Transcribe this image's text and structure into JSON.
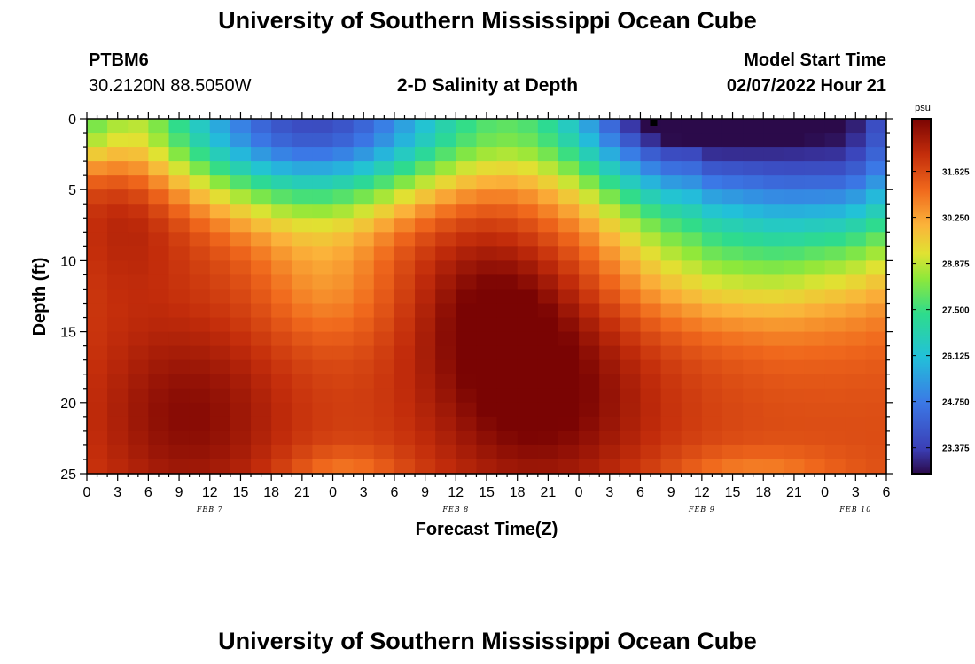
{
  "page": {
    "title_top": "University of Southern Mississippi Ocean Cube",
    "title_bottom": "University of Southern Mississippi Ocean Cube",
    "station": "PTBM6",
    "coords": "30.2120N  88.5050W",
    "subtitle": "2-D Salinity at Depth",
    "model_start_label": "Model Start Time",
    "model_start_value": "02/07/2022 Hour 21"
  },
  "chart_data": {
    "type": "heatmap",
    "title": "2-D Salinity at Depth",
    "xlabel": "Forecast Time(Z)",
    "ylabel": "Depth (ft)",
    "x_hours_range": [
      0,
      78
    ],
    "ylim": [
      25,
      0
    ],
    "xticks": [
      "0",
      "3",
      "6",
      "9",
      "12",
      "15",
      "18",
      "21",
      "0",
      "3",
      "6",
      "9",
      "12",
      "15",
      "18",
      "21",
      "0",
      "3",
      "6",
      "9",
      "12",
      "15",
      "18",
      "21",
      "0",
      "3",
      "6"
    ],
    "yticks": [
      "0",
      "5",
      "10",
      "15",
      "20",
      "25"
    ],
    "date_labels": [
      {
        "text": "FEB 7",
        "hour": 12
      },
      {
        "text": "FEB 8",
        "hour": 36
      },
      {
        "text": "FEB 9",
        "hour": 60
      },
      {
        "text": "FEB 10",
        "hour": 75
      }
    ],
    "colorbar": {
      "unit": "psu",
      "vmin": 22.6,
      "vmax": 33.2,
      "ticks": [
        "31.625",
        "30.250",
        "28.875",
        "27.500",
        "26.125",
        "24.750",
        "23.375"
      ],
      "tick_values": [
        31.625,
        30.25,
        28.875,
        27.5,
        26.125,
        24.75,
        23.375
      ]
    },
    "nx": 39,
    "ny": 25,
    "value_fn_notes": "salinity field: fresh surface lens (~23-25 psu) in two V-shaped intrusions around hours 10-24 and 52-78, saline core (~32.5-33 psu) near 15-22 ft around hours 6-14 and 36-50"
  }
}
